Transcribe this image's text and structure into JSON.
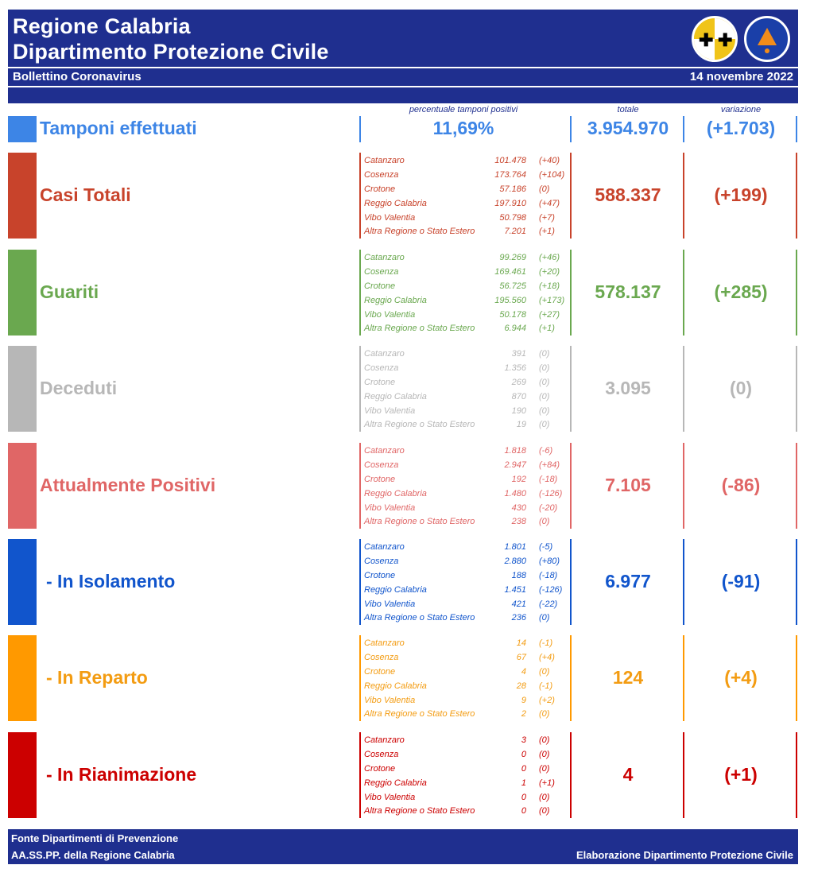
{
  "header": {
    "title_line1": "Regione Calabria",
    "title_line2": "Dipartimento Protezione Civile",
    "subtitle": "Bollettino Coronavirus",
    "date": "14 novembre 2022"
  },
  "columns": {
    "pct_label": "percentuale tamponi positivi",
    "total_label": "totale",
    "variation_label": "variazione"
  },
  "tamponi": {
    "label": "Tamponi effettuati",
    "pct": "11,69%",
    "total": "3.954.970",
    "variation": "(+1.703)",
    "color": "#3d85e6"
  },
  "sections": [
    {
      "label": "Casi Totali",
      "color": "#c8432b",
      "bar_color": "#c8432b",
      "total": "588.337",
      "variation": "(+199)",
      "rows": [
        {
          "place": "Catanzaro",
          "value": "101.478",
          "delta": "(+40)"
        },
        {
          "place": "Cosenza",
          "value": "173.764",
          "delta": "(+104)"
        },
        {
          "place": "Crotone",
          "value": "57.186",
          "delta": "(0)"
        },
        {
          "place": "Reggio Calabria",
          "value": "197.910",
          "delta": "(+47)"
        },
        {
          "place": "Vibo Valentia",
          "value": "50.798",
          "delta": "(+7)"
        },
        {
          "place": "Altra Regione o Stato Estero",
          "value": "7.201",
          "delta": "(+1)"
        }
      ]
    },
    {
      "label": "Guariti",
      "color": "#6aa84f",
      "bar_color": "#6aa84f",
      "total": "578.137",
      "variation": "(+285)",
      "rows": [
        {
          "place": "Catanzaro",
          "value": "99.269",
          "delta": "(+46)"
        },
        {
          "place": "Cosenza",
          "value": "169.461",
          "delta": "(+20)"
        },
        {
          "place": "Crotone",
          "value": "56.725",
          "delta": "(+18)"
        },
        {
          "place": "Reggio Calabria",
          "value": "195.560",
          "delta": "(+173)"
        },
        {
          "place": "Vibo Valentia",
          "value": "50.178",
          "delta": "(+27)"
        },
        {
          "place": "Altra Regione o Stato Estero",
          "value": "6.944",
          "delta": "(+1)"
        }
      ]
    },
    {
      "label": "Deceduti",
      "color": "#b7b7b7",
      "bar_color": "#b7b7b7",
      "total": "3.095",
      "variation": "(0)",
      "rows": [
        {
          "place": "Catanzaro",
          "value": "391",
          "delta": "(0)"
        },
        {
          "place": "Cosenza",
          "value": "1.356",
          "delta": "(0)"
        },
        {
          "place": "Crotone",
          "value": "269",
          "delta": "(0)"
        },
        {
          "place": "Reggio Calabria",
          "value": "870",
          "delta": "(0)"
        },
        {
          "place": "Vibo Valentia",
          "value": "190",
          "delta": "(0)"
        },
        {
          "place": "Altra Regione o Stato Estero",
          "value": "19",
          "delta": "(0)"
        }
      ]
    },
    {
      "label": "Attualmente Positivi",
      "color": "#e06666",
      "bar_color": "#e06666",
      "total": "7.105",
      "variation": "(-86)",
      "rows": [
        {
          "place": "Catanzaro",
          "value": "1.818",
          "delta": "(-6)"
        },
        {
          "place": "Cosenza",
          "value": "2.947",
          "delta": "(+84)"
        },
        {
          "place": "Crotone",
          "value": "192",
          "delta": "(-18)"
        },
        {
          "place": "Reggio Calabria",
          "value": "1.480",
          "delta": "(-126)"
        },
        {
          "place": "Vibo Valentia",
          "value": "430",
          "delta": "(-20)"
        },
        {
          "place": "Altra Regione o Stato Estero",
          "value": "238",
          "delta": "(0)"
        }
      ]
    },
    {
      "label": " - In Isolamento",
      "color": "#1155cc",
      "bar_color": "#1155cc",
      "total": "6.977",
      "variation": "(-91)",
      "rows": [
        {
          "place": "Catanzaro",
          "value": "1.801",
          "delta": "(-5)"
        },
        {
          "place": "Cosenza",
          "value": "2.880",
          "delta": "(+80)"
        },
        {
          "place": "Crotone",
          "value": "188",
          "delta": "(-18)"
        },
        {
          "place": "Reggio Calabria",
          "value": "1.451",
          "delta": "(-126)"
        },
        {
          "place": "Vibo Valentia",
          "value": "421",
          "delta": "(-22)"
        },
        {
          "place": "Altra Regione o Stato Estero",
          "value": "236",
          "delta": "(0)"
        }
      ]
    },
    {
      "label": " - In Reparto",
      "color": "#f39c12",
      "bar_color": "#ff9900",
      "total": "124",
      "variation": "(+4)",
      "rows": [
        {
          "place": "Catanzaro",
          "value": "14",
          "delta": "(-1)"
        },
        {
          "place": "Cosenza",
          "value": "67",
          "delta": "(+4)"
        },
        {
          "place": "Crotone",
          "value": "4",
          "delta": "(0)"
        },
        {
          "place": "Reggio Calabria",
          "value": "28",
          "delta": "(-1)"
        },
        {
          "place": "Vibo Valentia",
          "value": "9",
          "delta": "(+2)"
        },
        {
          "place": "Altra Regione o Stato Estero",
          "value": "2",
          "delta": "(0)"
        }
      ]
    },
    {
      "label": " - In Rianimazione",
      "color": "#cc0000",
      "bar_color": "#cc0000",
      "total": "4",
      "variation": "(+1)",
      "rows": [
        {
          "place": "Catanzaro",
          "value": "3",
          "delta": "(0)"
        },
        {
          "place": "Cosenza",
          "value": "0",
          "delta": "(0)"
        },
        {
          "place": "Crotone",
          "value": "0",
          "delta": "(0)"
        },
        {
          "place": "Reggio Calabria",
          "value": "1",
          "delta": "(+1)"
        },
        {
          "place": "Vibo Valentia",
          "value": "0",
          "delta": "(0)"
        },
        {
          "place": "Altra Regione o Stato Estero",
          "value": "0",
          "delta": "(0)"
        }
      ]
    }
  ],
  "footer": {
    "source_line1": "Fonte Dipartimenti di Prevenzione",
    "source_line2": "AA.SS.PP.  della Regione Calabria",
    "credit": "Elaborazione Dipartimento Protezione Civile"
  },
  "logos": {
    "region_logo": "calabria-region-emblem-icon",
    "pc_logo": "protezione-civile-emblem-icon"
  }
}
